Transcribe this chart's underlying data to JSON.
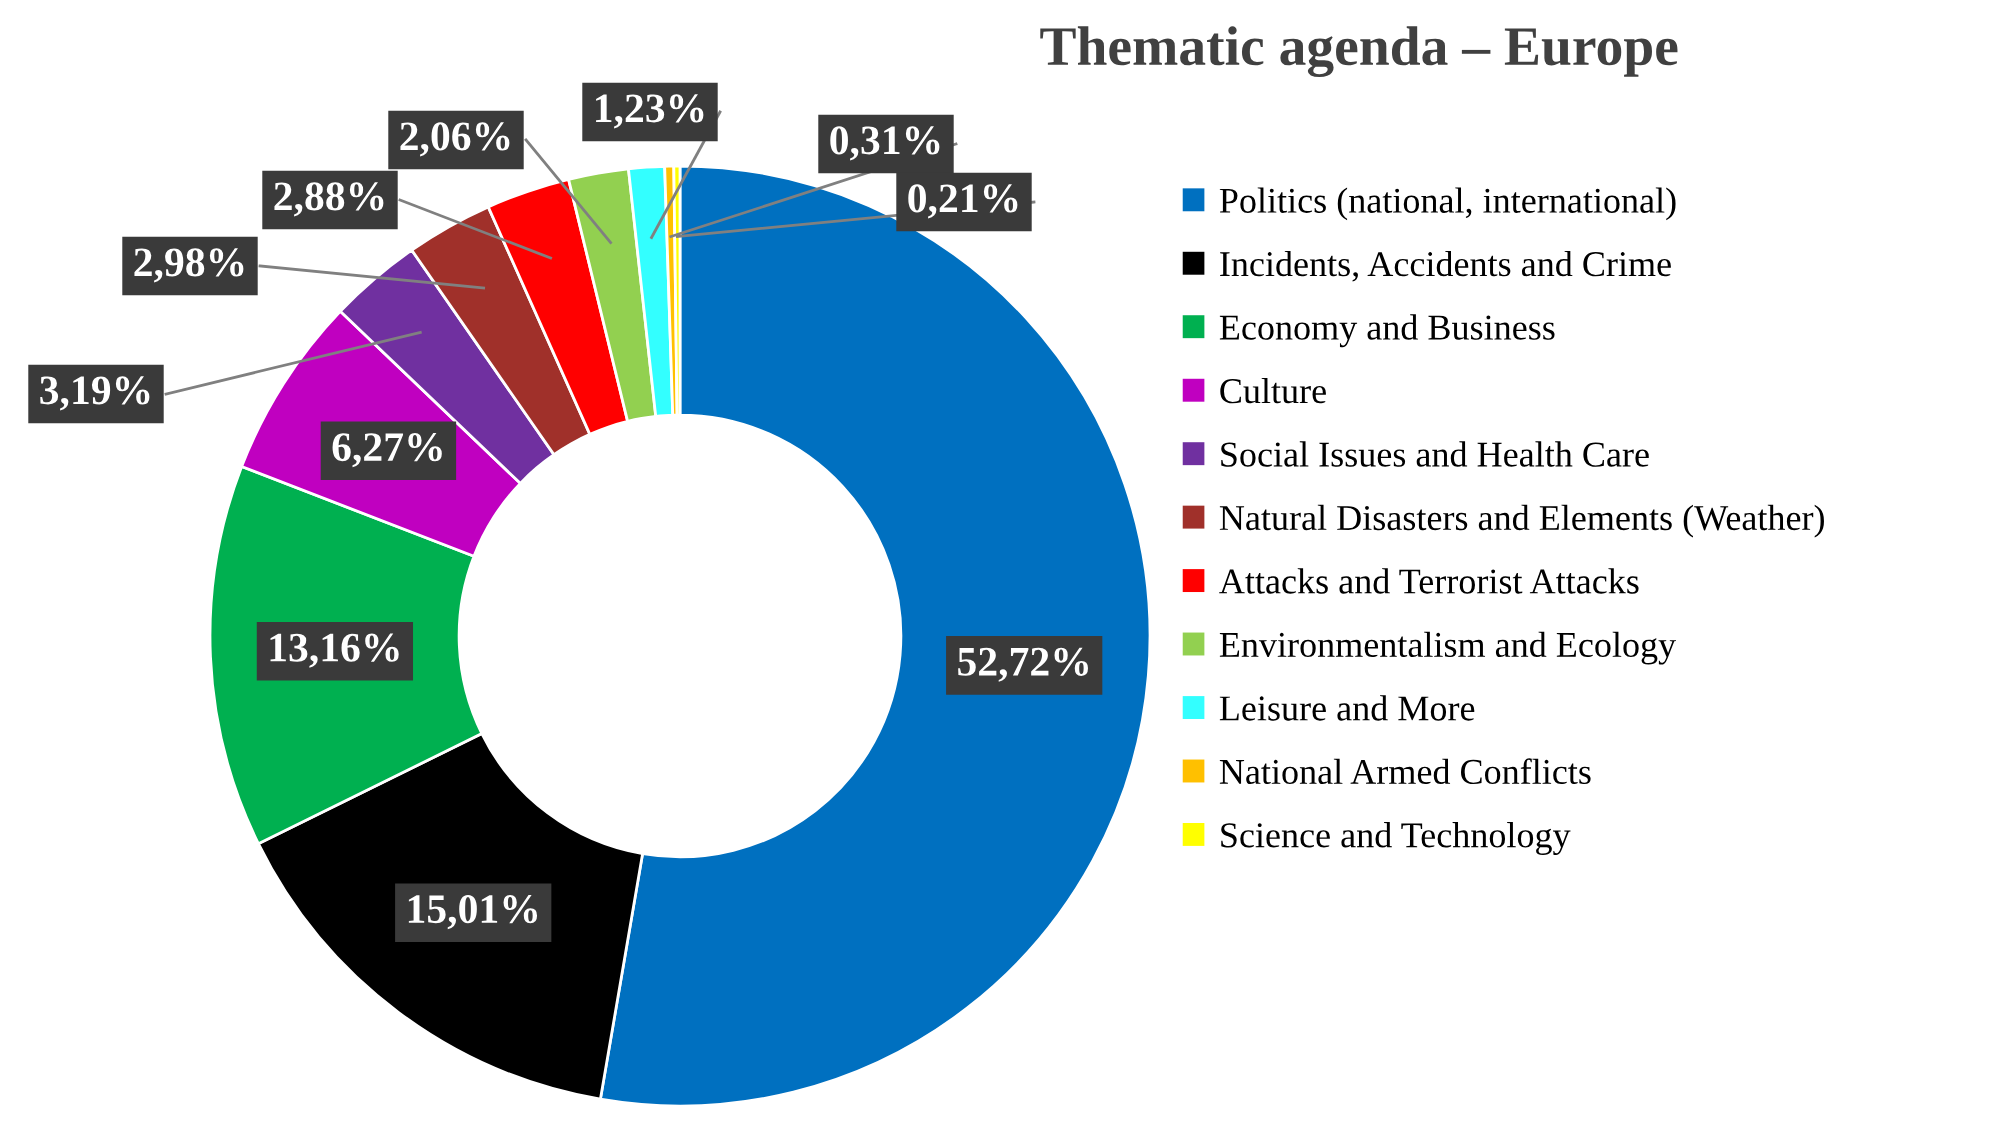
{
  "chart_data": {
    "type": "donut",
    "title": "Thematic agenda – Europe",
    "categories": [
      "Politics (national, international)",
      "Incidents, Accidents and Crime",
      "Economy and Business",
      "Culture",
      "Social Issues and Health Care",
      "Natural Disasters and Elements (Weather)",
      "Attacks and Terrorist Attacks",
      "Environmentalism and Ecology",
      "Leisure and More",
      "National Armed Conflicts",
      "Science and Technology"
    ],
    "values": [
      52.72,
      15.01,
      13.16,
      6.27,
      3.19,
      2.98,
      2.88,
      2.06,
      1.23,
      0.31,
      0.21
    ],
    "colors": [
      "#0070c0",
      "#000000",
      "#00b050",
      "#c000c0",
      "#7030a0",
      "#a0302a",
      "#ff0000",
      "#92d050",
      "#33ffff",
      "#ffc000",
      "#ffff00"
    ],
    "value_labels": [
      "52,72%",
      "15,01%",
      "13,16%",
      "6,27%",
      "3,19%",
      "2,98%",
      "2,88%",
      "2,06%",
      "1,23%",
      "0,31%",
      "0,21%"
    ],
    "legend": "right"
  }
}
